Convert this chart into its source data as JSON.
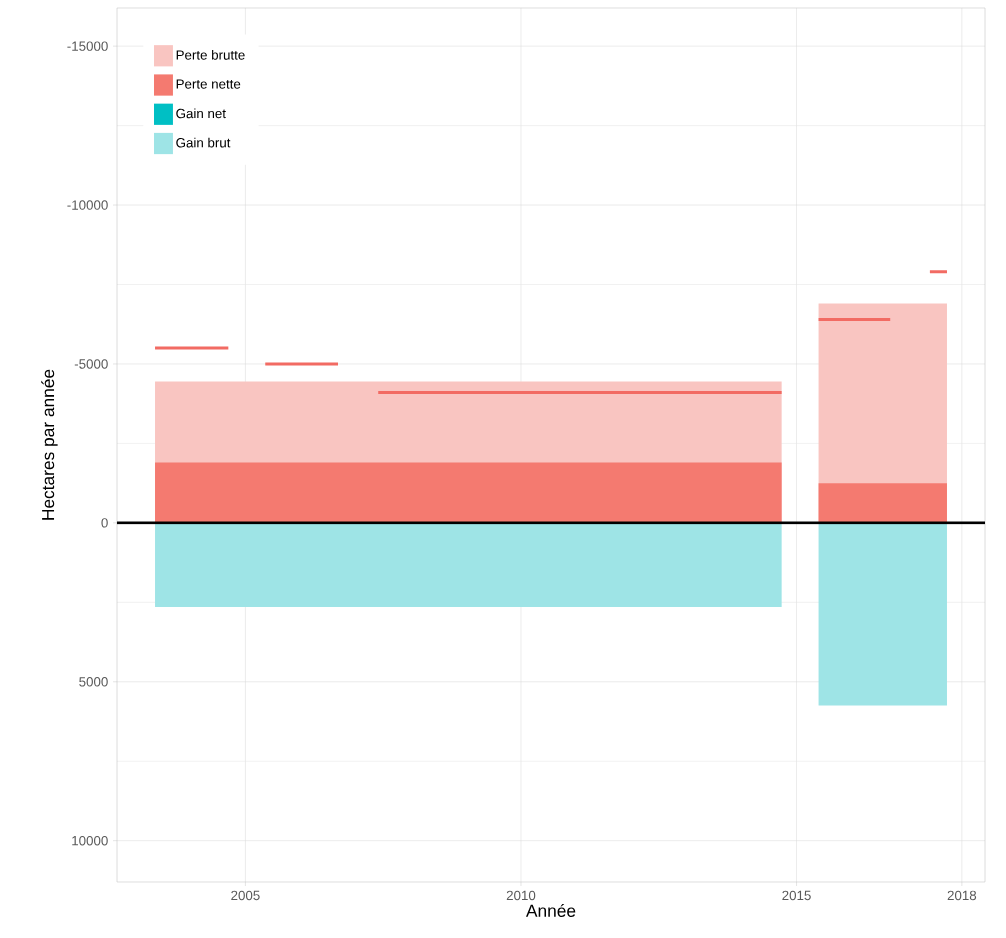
{
  "chart_data": {
    "type": "area",
    "xlabel": "Année",
    "ylabel": "Hectares par année",
    "xlim": [
      2002.67,
      2018.42
    ],
    "ylim": [
      11300,
      -16200
    ],
    "xticks": [
      2005,
      2010,
      2015,
      2018
    ],
    "yticks": [
      -15000,
      -10000,
      -5000,
      0,
      5000,
      10000
    ],
    "grid": true,
    "legend": "top left",
    "ref_lines": [
      {
        "axis": "y",
        "value": 0,
        "color": "#000000"
      }
    ],
    "series": [
      {
        "name": "Perte brutte",
        "color": "#f9c5c1",
        "x": [
          2003.36,
          2014.73,
          2015.07,
          2015.4,
          2017.73
        ],
        "values": [
          -4450,
          -4450,
          null,
          -6900,
          -6900
        ]
      },
      {
        "name": "Perte nette",
        "color": "#f47a70",
        "x": [
          2003.36,
          2014.73,
          2015.07,
          2015.4,
          2017.73
        ],
        "values": [
          -1900,
          -1900,
          null,
          -1250,
          -1250
        ]
      },
      {
        "name": "Gain net",
        "color": "#00bfc4"
      },
      {
        "name": "Gain brut",
        "color": "#9ee4e6",
        "x": [
          2003.36,
          2014.73,
          2015.07,
          2015.4,
          2017.73
        ],
        "values": [
          2650,
          2650,
          null,
          5750,
          5750
        ]
      },
      {
        "type": "line",
        "color": "#f26b63",
        "x": [
          2003.36,
          2004.69,
          2005.0,
          2005.36,
          2006.68,
          2007.0,
          2007.41,
          2014.73,
          2015.07,
          2015.4,
          2016.7,
          2017.0,
          2017.42,
          2017.73
        ],
        "values": [
          -5500,
          -5500,
          null,
          -5000,
          -5000,
          null,
          -4100,
          -4100,
          null,
          -6400,
          -6400,
          null,
          -7900,
          -7900
        ]
      }
    ]
  }
}
